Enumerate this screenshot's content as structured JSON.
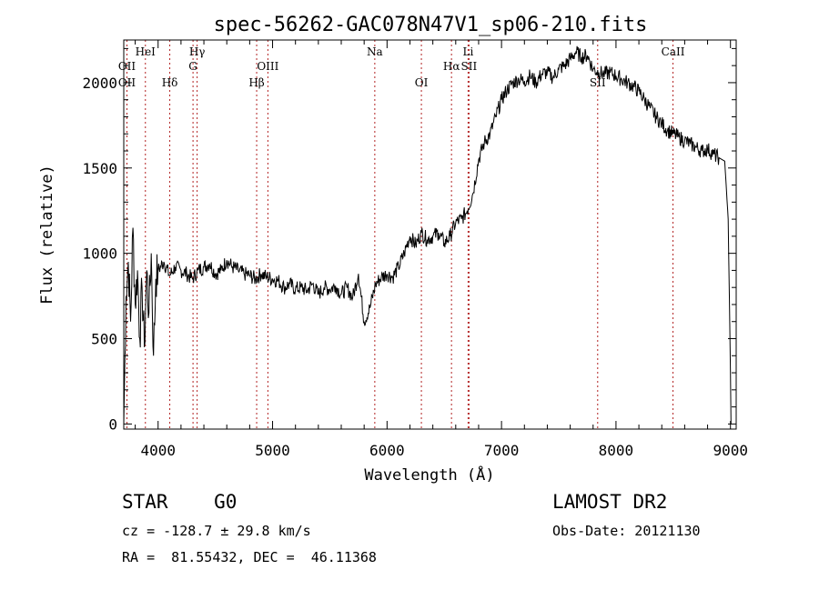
{
  "chart_data": {
    "type": "line",
    "title": "spec-56262-GAC078N47V1_sp06-210.fits",
    "xlabel": "Wavelength (Å)",
    "ylabel": "Flux (relative)",
    "xlim": [
      3700,
      9050
    ],
    "ylim": [
      -30,
      2250
    ],
    "x_ticks": [
      4000,
      5000,
      6000,
      7000,
      8000,
      9000
    ],
    "y_ticks": [
      0,
      500,
      1000,
      1500,
      2000
    ],
    "grid": false,
    "series": [
      {
        "color": "#000000",
        "x": [
          3700,
          3720,
          3740,
          3760,
          3780,
          3800,
          3820,
          3840,
          3860,
          3880,
          3900,
          3920,
          3940,
          3960,
          3980,
          4000,
          4050,
          4100,
          4150,
          4200,
          4250,
          4300,
          4350,
          4400,
          4450,
          4500,
          4550,
          4600,
          4650,
          4700,
          4750,
          4800,
          4850,
          4900,
          4950,
          5000,
          5050,
          5100,
          5150,
          5200,
          5250,
          5300,
          5350,
          5400,
          5450,
          5500,
          5550,
          5600,
          5650,
          5700,
          5750,
          5800,
          5850,
          5900,
          5950,
          6000,
          6050,
          6100,
          6150,
          6200,
          6250,
          6300,
          6350,
          6400,
          6450,
          6500,
          6550,
          6600,
          6650,
          6700,
          6750,
          6800,
          6850,
          6900,
          6950,
          7000,
          7050,
          7100,
          7150,
          7200,
          7250,
          7300,
          7350,
          7400,
          7450,
          7500,
          7550,
          7600,
          7650,
          7700,
          7750,
          7800,
          7850,
          7900,
          7950,
          8000,
          8050,
          8100,
          8150,
          8200,
          8250,
          8300,
          8350,
          8400,
          8450,
          8500,
          8550,
          8600,
          8650,
          8700,
          8750,
          8800,
          8850,
          8900,
          8950,
          8980,
          9000,
          9005
        ],
        "y": [
          0,
          750,
          950,
          600,
          1150,
          700,
          900,
          500,
          800,
          450,
          900,
          650,
          1000,
          400,
          850,
          900,
          950,
          870,
          920,
          900,
          880,
          850,
          900,
          920,
          940,
          880,
          900,
          960,
          920,
          900,
          880,
          870,
          850,
          880,
          860,
          850,
          840,
          800,
          820,
          790,
          800,
          780,
          820,
          760,
          800,
          790,
          810,
          760,
          800,
          740,
          880,
          600,
          680,
          820,
          860,
          880,
          860,
          920,
          1000,
          1100,
          1050,
          1120,
          1080,
          1100,
          1120,
          1060,
          1100,
          1180,
          1200,
          1250,
          1350,
          1550,
          1650,
          1700,
          1800,
          1900,
          1960,
          2000,
          2020,
          2010,
          2040,
          2000,
          2050,
          2060,
          2030,
          2080,
          2100,
          2140,
          2180,
          2150,
          2160,
          2080,
          2060,
          2050,
          2060,
          2040,
          2020,
          2000,
          1980,
          1950,
          1900,
          1850,
          1800,
          1760,
          1720,
          1700,
          1680,
          1660,
          1640,
          1620,
          1600,
          1610,
          1580,
          1560,
          1540,
          1200,
          300,
          0
        ]
      }
    ],
    "lines": [
      {
        "name": "OII",
        "x": 3728,
        "row": 2
      },
      {
        "name": "OII",
        "x": 3728,
        "row": 3
      },
      {
        "name": "HeI",
        "x": 3889,
        "row": 1
      },
      {
        "name": "Hδ",
        "x": 4102,
        "row": 3
      },
      {
        "name": "Hγ",
        "x": 4341,
        "row": 1
      },
      {
        "name": "G",
        "x": 4305,
        "row": 2
      },
      {
        "name": "Hβ",
        "x": 4861,
        "row": 3
      },
      {
        "name": "OIII",
        "x": 4959,
        "row": 2
      },
      {
        "name": "Na",
        "x": 5893,
        "row": 1
      },
      {
        "name": "OI",
        "x": 6300,
        "row": 3
      },
      {
        "name": "Hα",
        "x": 6563,
        "row": 2
      },
      {
        "name": "SII",
        "x": 6716,
        "row": 2
      },
      {
        "name": "Li",
        "x": 6708,
        "row": 1
      },
      {
        "name": "SII",
        "x": 7840,
        "row": 3
      },
      {
        "name": "CaII",
        "x": 8498,
        "row": 1
      }
    ]
  },
  "info": {
    "object": "STAR    G0",
    "survey": "LAMOST DR2",
    "cz": "cz = -128.7 ± 29.8 km/s",
    "obs_date": "Obs-Date: 20121130",
    "coords": "RA =  81.55432, DEC =  46.11368"
  }
}
